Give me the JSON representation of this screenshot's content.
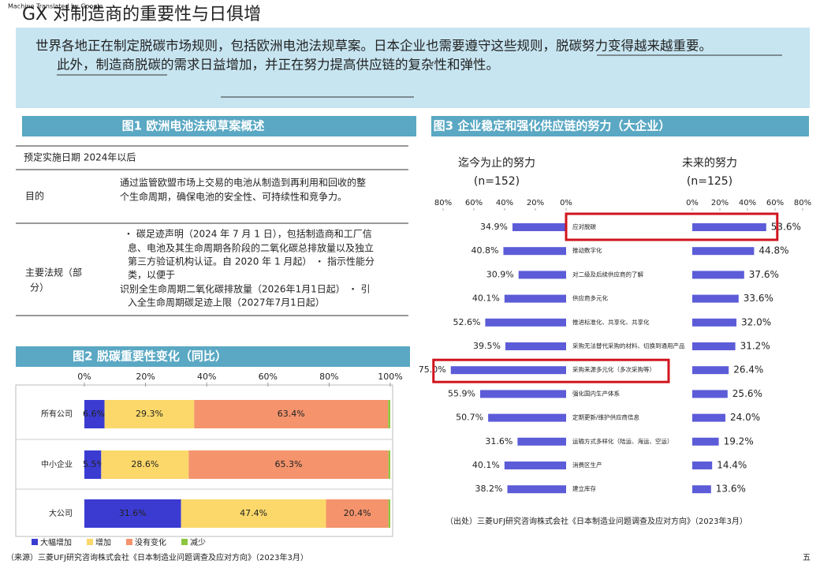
{
  "header": {
    "watermark": "Machine Translated by Google",
    "title": "GX 对制造商的重要性与日俱增",
    "page_number": "五"
  },
  "banner": {
    "lines": [
      "世界各地正在制定脱碳市场规则，包括欧洲电池法规草案。日本企业也需要遵守这些规则，脱碳努力变得越来越重要。",
      "此外，制造商脱碳的需求日益增加，并正在努力提高供应链的复杂性和弹性。"
    ]
  },
  "figure1": {
    "title": "图1 欧洲电池法规草案概述",
    "rows": [
      {
        "label": "预定实施日期 2024年以后"
      },
      {
        "label": "目的",
        "lines": [
          "通过监管欧盟市场上交易的电池从制造到再利用和回收的整",
          "个生命周期，确保电池的安全性、可持续性和竞争力。"
        ]
      },
      {
        "label_lines": [
          "主要法规（部",
          "分）"
        ],
        "lines": [
          "・ 碳足迹声明（2024 年 7 月 1 日），包括制造商和工厂信",
          "息、电池及其生命周期各阶段的二氧化碳总排放量以及独立",
          "第三方验证机构认证。自 2020 年 1 月起） ・ 指示性能分",
          "类，以便于",
          "识别全生命周期二氧化碳排放量（2026年1月1日起） ・ 引",
          "入全生命周期碳足迹上限（2027年7月1日起）"
        ]
      }
    ]
  },
  "chart_data": [
    {
      "type": "stacked-bar",
      "title": "图2 脱碳重要性变化（同比）",
      "categories": [
        "所有公司",
        "中小企业",
        "大公司"
      ],
      "series": [
        {
          "name": "大幅增加",
          "color": "#3b3bd2",
          "values": [
            6.6,
            5.5,
            31.6
          ],
          "value_labels": [
            "6.6%",
            "5.5%",
            "31.6%"
          ]
        },
        {
          "name": "增加",
          "color": "#fcd86a",
          "values": [
            29.3,
            28.6,
            47.4
          ],
          "value_labels": [
            "29.3%",
            "28.6%",
            "47.4%"
          ]
        },
        {
          "name": "没有变化",
          "color": "#f4936c",
          "values": [
            63.4,
            65.3,
            20.4
          ],
          "value_labels": [
            "63.4%",
            "65.3%",
            "20.4%"
          ]
        },
        {
          "name": "减少",
          "color": "#8cc63f",
          "values": [
            0.7,
            0.6,
            0.6
          ]
        }
      ],
      "xlim": [
        0,
        100
      ],
      "xticks": [
        {
          "value": 0,
          "label": "0%"
        },
        {
          "value": 20,
          "label": "20%"
        },
        {
          "value": 40,
          "label": "40%"
        },
        {
          "value": 60,
          "label": "60%"
        },
        {
          "value": 80,
          "label": "80%"
        },
        {
          "value": 100,
          "label": "100%"
        }
      ],
      "source": "（来源）三菱UFJ研究咨询株式会社《日本制造业问题调查及应对方向》（2023年3月）"
    },
    {
      "type": "butterfly-bar",
      "title": "图3 企业稳定和强化供应链的努力（大企业）",
      "categories": [
        "应对脱碳",
        "推动数字化",
        "对二级及后续供应商的了解",
        "供应商多元化",
        "推进标准化、共享化、共享化",
        "采购无法替代采购的材料、切换到通用产品",
        "采购来源多元化（多次采购等）",
        "强化国内生产体系",
        "定期更新/维护供应商信息",
        "运输方式多样化（陆运、海运、空运）",
        "消费区生产",
        "建立库存"
      ],
      "series": [
        {
          "name": "迄今为止的努力",
          "n": "(n=152)",
          "color": "#5c5cd8",
          "values": [
            34.9,
            40.8,
            30.9,
            40.1,
            52.6,
            39.5,
            75.0,
            55.9,
            50.7,
            31.6,
            40.1,
            38.2
          ],
          "value_labels": [
            "34.9%",
            "40.8%",
            "30.9%",
            "40.1%",
            "52.6%",
            "39.5%",
            "75.0%",
            "55.9%",
            "50.7%",
            "31.6%",
            "40.1%",
            "38.2%"
          ],
          "xlim": [
            0,
            80
          ],
          "xticks": [
            {
              "value": 80,
              "label": "80%"
            },
            {
              "value": 60,
              "label": "60%"
            },
            {
              "value": 40,
              "label": "40%"
            },
            {
              "value": 20,
              "label": "20%"
            },
            {
              "value": 0,
              "label": "0%"
            }
          ]
        },
        {
          "name": "未来的努力",
          "n": "(n=125)",
          "color": "#5c5cd8",
          "values": [
            53.6,
            44.8,
            37.6,
            33.6,
            32.0,
            31.2,
            26.4,
            25.6,
            24.0,
            19.2,
            14.4,
            13.6
          ],
          "value_labels": [
            "53.6%",
            "44.8%",
            "37.6%",
            "33.6%",
            "32.0%",
            "31.2%",
            "26.4%",
            "25.6%",
            "24.0%",
            "19.2%",
            "14.4%",
            "13.6%"
          ],
          "xlim": [
            0,
            80
          ],
          "xticks": [
            {
              "value": 0,
              "label": "0%"
            },
            {
              "value": 20,
              "label": "20%"
            },
            {
              "value": 40,
              "label": "40%"
            },
            {
              "value": 60,
              "label": "60%"
            },
            {
              "value": 80,
              "label": "80%"
            }
          ]
        }
      ],
      "highlight_max": true,
      "highlight_color": "#d0141c",
      "source": "（出处）三菱UFJ研究咨询株式会社《日本制造业问题调查及应对方向》（2023年3月）"
    }
  ]
}
